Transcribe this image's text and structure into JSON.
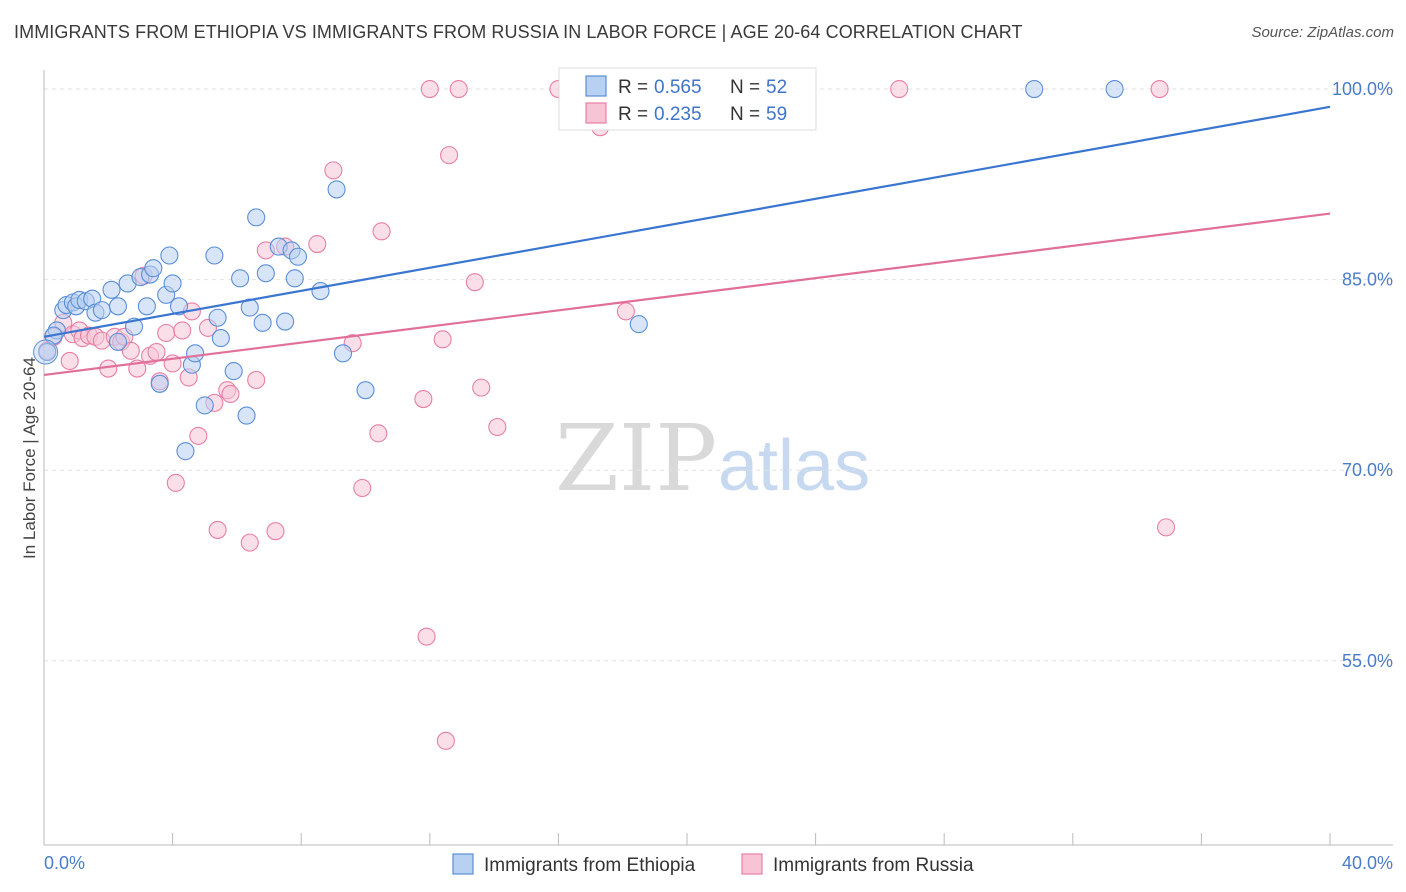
{
  "title": "IMMIGRANTS FROM ETHIOPIA VS IMMIGRANTS FROM RUSSIA IN LABOR FORCE | AGE 20-64 CORRELATION CHART",
  "source": "Source: ZipAtlas.com",
  "watermark": {
    "zip": "ZIP",
    "atlas": "atlas"
  },
  "legend": {
    "r_label": "R =",
    "n_label": "N =",
    "items": [
      {
        "name": "Immigrants from Ethiopia",
        "r": "0.565",
        "n": "52"
      },
      {
        "name": "Immigrants from Russia",
        "r": "0.235",
        "n": "59"
      }
    ]
  },
  "chart_data": {
    "type": "scatter",
    "title": "IMMIGRANTS FROM ETHIOPIA VS IMMIGRANTS FROM RUSSIA IN LABOR FORCE | AGE 20-64 CORRELATION CHART",
    "xlabel": "",
    "ylabel": "In Labor Force | Age 20-64",
    "xlim": [
      0,
      40
    ],
    "ylim": [
      40.5,
      101.5
    ],
    "x_tick_labels": [
      {
        "value": 0,
        "label": "0.0%"
      },
      {
        "value": 40,
        "label": "40.0%"
      }
    ],
    "y_ticks": [
      {
        "value": 100,
        "label": "100.0%"
      },
      {
        "value": 85,
        "label": "85.0%"
      },
      {
        "value": 70,
        "label": "70.0%"
      },
      {
        "value": 55,
        "label": "55.0%"
      }
    ],
    "colors": {
      "ethiopia": "#5b8fd8",
      "ethiopia_fill": "#b8d0f2",
      "russia": "#e87fa4",
      "russia_fill": "#f7c4d6",
      "ethiopia_line": "#3a76d0",
      "russia_line": "#e0709a"
    },
    "series": [
      {
        "name": "Immigrants from Ethiopia",
        "trend": {
          "x0": 0,
          "y0": 80.5,
          "x1": 40,
          "y1": 98.6
        },
        "points": [
          [
            0.1,
            79.3
          ],
          [
            0.4,
            81.0
          ],
          [
            0.6,
            82.6
          ],
          [
            0.7,
            83.0
          ],
          [
            0.9,
            83.2
          ],
          [
            1.0,
            82.9
          ],
          [
            1.1,
            83.4
          ],
          [
            1.3,
            83.3
          ],
          [
            1.5,
            83.5
          ],
          [
            1.6,
            82.4
          ],
          [
            1.8,
            82.6
          ],
          [
            2.1,
            84.2
          ],
          [
            2.3,
            82.9
          ],
          [
            2.6,
            84.7
          ],
          [
            2.8,
            81.3
          ],
          [
            3.0,
            85.2
          ],
          [
            3.2,
            82.9
          ],
          [
            3.3,
            85.4
          ],
          [
            3.4,
            85.9
          ],
          [
            3.6,
            76.8
          ],
          [
            3.8,
            83.8
          ],
          [
            3.9,
            86.9
          ],
          [
            4.0,
            84.7
          ],
          [
            4.2,
            82.9
          ],
          [
            4.4,
            71.5
          ],
          [
            4.6,
            78.3
          ],
          [
            4.7,
            79.2
          ],
          [
            5.0,
            75.1
          ],
          [
            5.3,
            86.9
          ],
          [
            5.4,
            82.0
          ],
          [
            5.5,
            80.4
          ],
          [
            5.9,
            77.8
          ],
          [
            6.1,
            85.1
          ],
          [
            6.3,
            74.3
          ],
          [
            6.4,
            82.8
          ],
          [
            6.6,
            89.9
          ],
          [
            6.8,
            81.6
          ],
          [
            6.9,
            85.5
          ],
          [
            7.3,
            87.6
          ],
          [
            7.5,
            81.7
          ],
          [
            7.7,
            87.3
          ],
          [
            7.8,
            85.1
          ],
          [
            7.9,
            86.8
          ],
          [
            8.6,
            84.1
          ],
          [
            9.1,
            92.1
          ],
          [
            9.3,
            79.2
          ],
          [
            10.0,
            76.3
          ],
          [
            18.5,
            81.5
          ],
          [
            30.8,
            100.0
          ],
          [
            33.3,
            100.0
          ],
          [
            0.3,
            80.6
          ],
          [
            2.3,
            80.1
          ]
        ]
      },
      {
        "name": "Immigrants from Russia",
        "trend": {
          "x0": 0,
          "y0": 77.5,
          "x1": 40,
          "y1": 90.2
        },
        "points": [
          [
            0.1,
            79.4
          ],
          [
            0.3,
            80.5
          ],
          [
            0.6,
            81.6
          ],
          [
            0.8,
            78.6
          ],
          [
            0.9,
            80.7
          ],
          [
            1.1,
            81.0
          ],
          [
            1.2,
            80.4
          ],
          [
            1.4,
            80.6
          ],
          [
            1.6,
            80.5
          ],
          [
            1.8,
            80.2
          ],
          [
            2.0,
            78.0
          ],
          [
            2.2,
            80.5
          ],
          [
            2.4,
            80.1
          ],
          [
            2.5,
            80.5
          ],
          [
            2.7,
            79.4
          ],
          [
            2.9,
            78.0
          ],
          [
            3.1,
            85.3
          ],
          [
            3.3,
            79.0
          ],
          [
            3.5,
            79.3
          ],
          [
            3.6,
            77.0
          ],
          [
            3.8,
            80.8
          ],
          [
            4.0,
            78.4
          ],
          [
            4.1,
            69.0
          ],
          [
            4.3,
            81.0
          ],
          [
            4.5,
            77.3
          ],
          [
            4.6,
            82.5
          ],
          [
            4.8,
            72.7
          ],
          [
            5.1,
            81.2
          ],
          [
            5.3,
            75.3
          ],
          [
            5.4,
            65.3
          ],
          [
            5.7,
            76.3
          ],
          [
            5.8,
            76.0
          ],
          [
            6.4,
            64.3
          ],
          [
            6.6,
            77.1
          ],
          [
            6.9,
            87.3
          ],
          [
            7.2,
            65.2
          ],
          [
            7.5,
            87.6
          ],
          [
            8.5,
            87.8
          ],
          [
            9.0,
            93.6
          ],
          [
            9.6,
            80.0
          ],
          [
            9.9,
            68.6
          ],
          [
            10.4,
            72.9
          ],
          [
            10.5,
            88.8
          ],
          [
            11.8,
            75.6
          ],
          [
            11.9,
            56.9
          ],
          [
            12.0,
            100.0
          ],
          [
            12.4,
            80.3
          ],
          [
            12.5,
            48.7
          ],
          [
            12.6,
            94.8
          ],
          [
            12.9,
            100.0
          ],
          [
            13.4,
            84.8
          ],
          [
            13.6,
            76.5
          ],
          [
            14.1,
            73.4
          ],
          [
            16.0,
            100.0
          ],
          [
            17.3,
            97.0
          ],
          [
            18.1,
            82.5
          ],
          [
            26.6,
            100.0
          ],
          [
            34.7,
            100.0
          ],
          [
            34.9,
            65.5
          ]
        ]
      }
    ]
  }
}
